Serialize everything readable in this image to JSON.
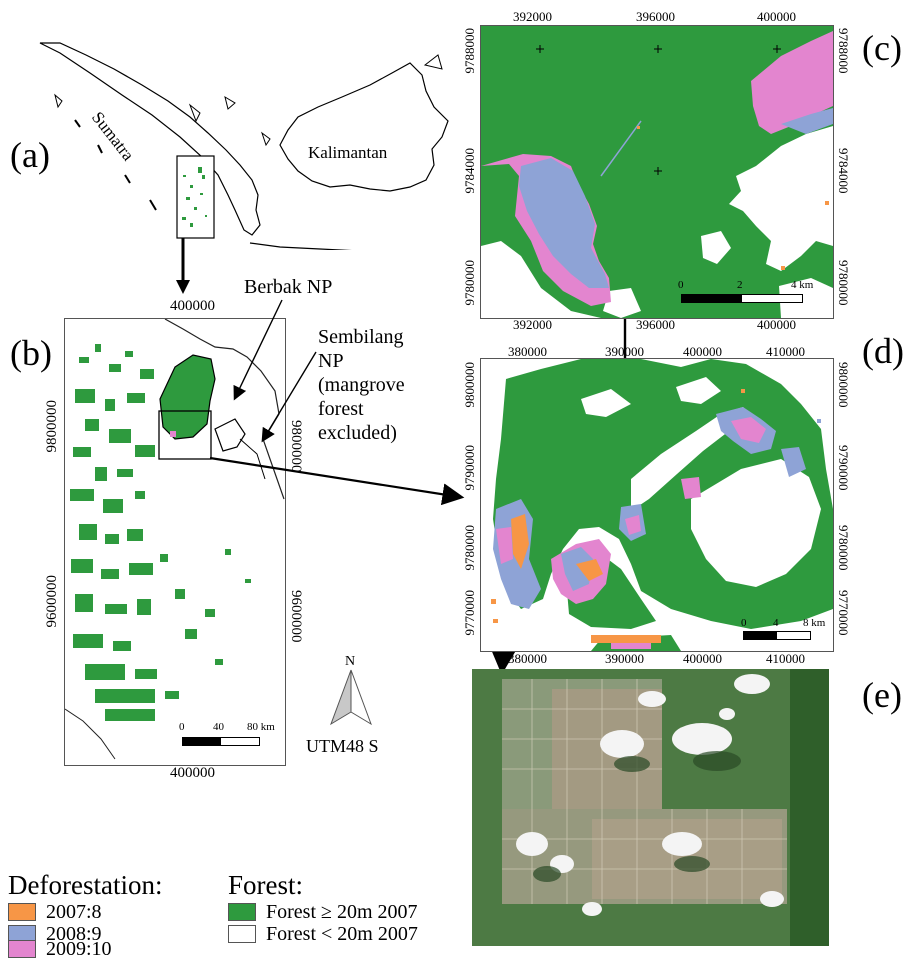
{
  "panels": {
    "a": "(a)",
    "b": "(b)",
    "c": "(c)",
    "d": "(d)",
    "e": "(e)"
  },
  "overview": {
    "region_left": "Sumatra",
    "region_right": "Kalimantan"
  },
  "annotations": {
    "berbak": "Berbak NP",
    "sembilang_1": "Sembilang",
    "sembilang_2": "NP",
    "sembilang_3": "(mangrove",
    "sembilang_4": "forest",
    "sembilang_5": "excluded)"
  },
  "map_b": {
    "top_x": "400000",
    "bottom_x": "400000",
    "left_y1": "9800000",
    "left_y2": "9600000",
    "right_y1": "9800000",
    "right_y2": "9600000",
    "scale_0": "0",
    "scale_1": "40",
    "scale_2": "80 km"
  },
  "map_c": {
    "top_x": [
      "392000",
      "396000",
      "400000"
    ],
    "bottom_x": [
      "392000",
      "396000",
      "400000"
    ],
    "left_y": [
      "9788000",
      "9784000",
      "9780000"
    ],
    "right_y": [
      "9788000",
      "9784000",
      "9780000"
    ],
    "scale_0": "0",
    "scale_1": "2",
    "scale_2": "4 km"
  },
  "map_d": {
    "top_x": [
      "380000",
      "390000",
      "400000",
      "410000"
    ],
    "bottom_x": [
      "380000",
      "390000",
      "400000",
      "410000"
    ],
    "left_y": [
      "9800000",
      "9790000",
      "9780000",
      "9770000"
    ],
    "right_y": [
      "9800000",
      "9790000",
      "9780000",
      "9770000"
    ],
    "scale_0": "0",
    "scale_1": "4",
    "scale_2": "8 km"
  },
  "north": {
    "letter": "N",
    "projection": "UTM48 S"
  },
  "legend": {
    "deforestation_title": "Deforestation:",
    "deforestation_items": [
      "2007:8",
      "2008:9",
      "2009:10"
    ],
    "forest_title": "Forest:",
    "forest_items": [
      "Forest ≥ 20m 2007",
      "Forest < 20m 2007"
    ]
  },
  "colors": {
    "forest": "#2e9a3e",
    "nonforest": "#ffffff",
    "defor_2007": "#f79646",
    "defor_2008": "#8ea3d6",
    "defor_2009": "#e385cf",
    "frame": "#555555"
  }
}
